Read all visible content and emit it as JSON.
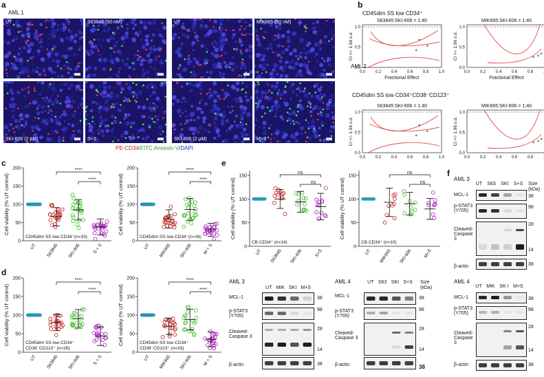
{
  "panel_a": {
    "letter": "a",
    "title": "AML 1",
    "tiles": [
      "UT",
      "S63845 (50 nM)",
      "UT",
      "MIK665 (50 nM)",
      "SKI-606 (2 μM)",
      "S+S",
      "SKI-606 (2 μM)",
      "M+S"
    ],
    "caption": {
      "red": "PE-CD34",
      "green": "/FITC Annexin V",
      "blue": "/DAPI"
    }
  },
  "panel_b": {
    "letter": "b",
    "top_header": "CD45dim SS low CD34⁺",
    "aml": "AML 2",
    "mid_header": "CD45dim SS low CD34⁺CD38⁻CD123⁺",
    "plot_titles": [
      "S63845:SKI-606 = 1:40",
      "MIK665:SKI-606 = 1:40",
      "S63845:SKI-606 = 1:40",
      "MIK665:SKI-606 = 1:40"
    ],
    "ylabel": "CI +/- 1.96 s.d.",
    "xlabel": "Fractional Effect",
    "xticks": [
      "0.0",
      "0.2",
      "0.4",
      "0.6",
      "0.8",
      "1.0"
    ],
    "yticks": [
      "0.0",
      "0.5",
      "1.0"
    ],
    "marker": "*"
  },
  "panel_c": {
    "letter": "c",
    "ylabel": "Cell viability (% UT control)",
    "yticks": [
      "0",
      "50",
      "100",
      "150",
      "200"
    ],
    "plots": [
      {
        "cats": [
          "UT",
          "S63845",
          "SKI-606",
          "S + S"
        ],
        "note": "CD45dim SS low CD34⁺(n=33)",
        "sig1": "****",
        "sig2": "****"
      },
      {
        "cats": [
          "UT",
          "MIK665",
          "SKI-606",
          "M + S"
        ],
        "note": "CD45dim SS low CD34⁺(n=34)",
        "sig1": "****",
        "sig2": "****"
      }
    ]
  },
  "panel_d": {
    "letter": "d",
    "ylabel": "Cell viability (% UT control)",
    "yticks": [
      "0",
      "50",
      "100",
      "150",
      "200"
    ],
    "plots": [
      {
        "cats": [
          "UT",
          "S63845",
          "SKI-606",
          "S + S"
        ],
        "note1": "CD45dim SS low CD34⁺",
        "note2": "CD38⁻CD123⁺ (n=28)",
        "sig1": "****",
        "sig2": "****"
      },
      {
        "cats": [
          "UT",
          "MIK665",
          "SKI-606",
          "M + S"
        ],
        "note1": "CD45dim SS low CD34⁺",
        "note2": "CD38⁻CD123⁺ (n=33)",
        "sig1": "****",
        "sig2": "****"
      }
    ]
  },
  "panel_e": {
    "letter": "e",
    "ylabel": "Cell viability (% UT control)",
    "yticks": [
      "0",
      "50",
      "100",
      "150"
    ],
    "plots": [
      {
        "cats": [
          "UT",
          "S63845",
          "SKI-606",
          "S+S"
        ],
        "note": "CB CD34⁺ (n=14)",
        "sig1": "ns",
        "sig2": "ns"
      },
      {
        "cats": [
          "UT",
          "MIK665",
          "SKI-606",
          "M+S"
        ],
        "note": "CB CD34⁺ (n=10)",
        "sig1": "ns",
        "sig2": "ns"
      }
    ],
    "blots": [
      {
        "title": "AML 3",
        "lanes": [
          "UT",
          "MIK",
          "SKI",
          "M+S"
        ],
        "rows": [
          "MCL-1",
          "p-STAT3 (Y705)",
          "Cleaved-Caspase 3",
          "β-actin"
        ],
        "sizes": [
          "38",
          "98",
          "28",
          "14",
          "38"
        ]
      },
      {
        "title": "AML 4",
        "lanes": [
          "UT",
          "S63",
          "SKI",
          "S+S"
        ],
        "rows": [
          "MCL-1",
          "p-STAT3 (Y705)",
          "Cleaved-Caspase 3",
          "β-actin"
        ],
        "sizes": [
          "38",
          "98",
          "28",
          "14",
          "38"
        ],
        "size_label": "Size (kDa)"
      }
    ]
  },
  "panel_f": {
    "letter": "f",
    "size_label": "Size (kDa)",
    "blots": [
      {
        "title": "AML 3",
        "lanes": [
          "UT",
          "S63",
          "SKI",
          "S+S"
        ],
        "rows": [
          "MCL-1",
          "p-STAT3 (Y705)",
          "Cleaved-Caspase 3",
          "β-actin"
        ],
        "sizes": [
          "38",
          "98",
          "28",
          "14",
          "38"
        ]
      },
      {
        "title": "AML 4",
        "lanes": [
          "UT",
          "MIK",
          "SK I",
          "M+S"
        ],
        "rows": [
          "MCL-1",
          "p-STAT3 (Y705)",
          "Cleaved-Caspase 3",
          "β-actin"
        ],
        "sizes": [
          "38",
          "98",
          "28",
          "14",
          "38"
        ]
      }
    ]
  }
}
